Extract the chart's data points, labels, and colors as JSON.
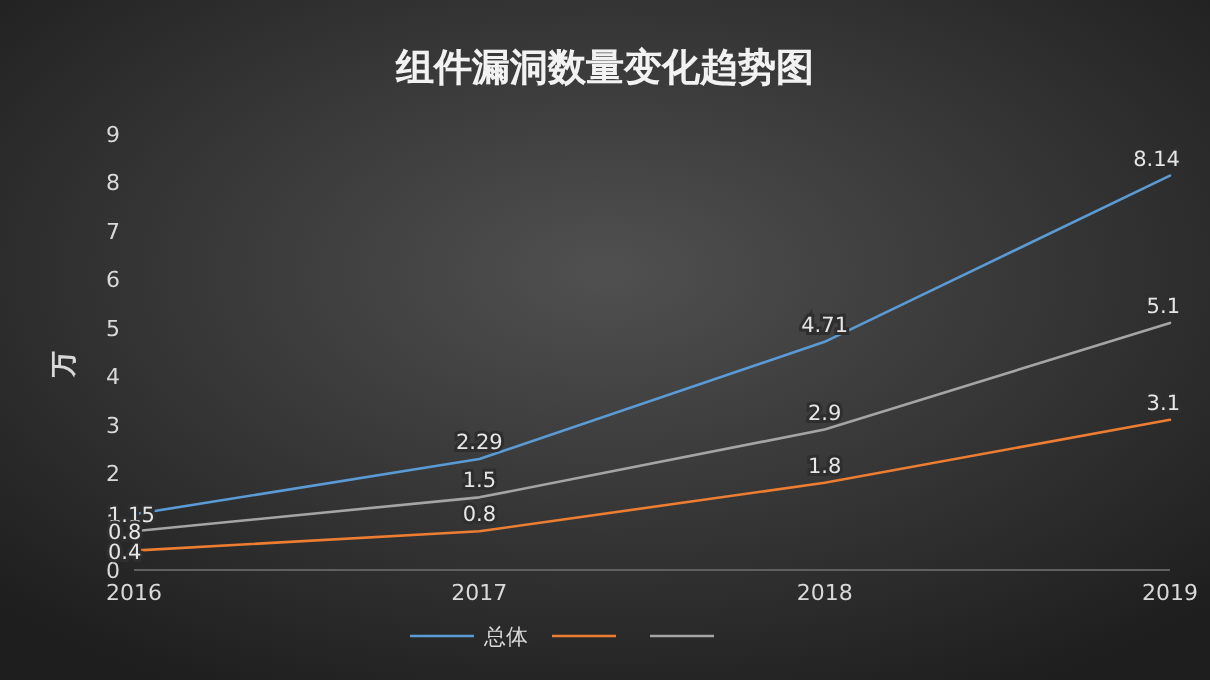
{
  "chart_data": {
    "type": "line",
    "title": "组件漏洞数量变化趋势图",
    "ylabel": "万",
    "x": [
      2016,
      2017,
      2018,
      2019
    ],
    "xlim": [
      2016,
      2019
    ],
    "xticks": [
      2016,
      2017,
      2018,
      2019
    ],
    "ylim": [
      0,
      9
    ],
    "yticks": [
      0,
      1,
      2,
      3,
      4,
      5,
      6,
      7,
      8,
      9
    ],
    "series": [
      {
        "name": "总体",
        "color": "#5b9bd5",
        "values": [
          1.15,
          2.29,
          4.71,
          8.14
        ]
      },
      {
        "color": "#ed7d31",
        "values": [
          0.4,
          0.8,
          1.8,
          3.1
        ]
      },
      {
        "color": "#a5a5a5",
        "values": [
          0.8,
          1.5,
          2.9,
          5.1
        ]
      }
    ],
    "data_labels": true,
    "legend": "bottom",
    "grid": false,
    "marker": "none",
    "line_style": "solid"
  }
}
